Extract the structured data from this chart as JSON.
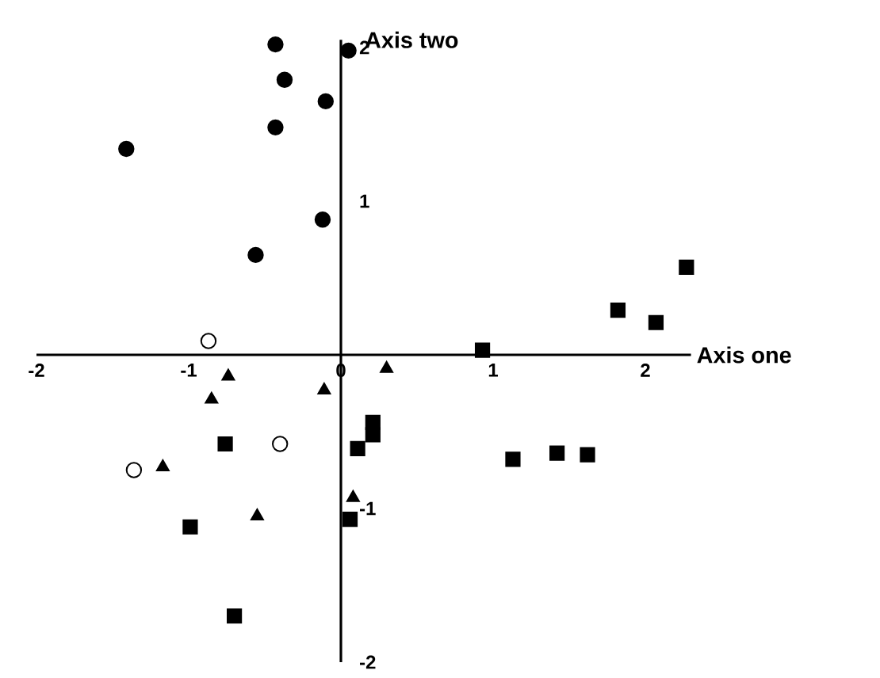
{
  "chart_data": {
    "type": "scatter",
    "xlabel": "Axis one",
    "ylabel": "Axis two",
    "xlim": [
      -2,
      2.3
    ],
    "ylim": [
      -2,
      2.05
    ],
    "xticks": [
      -2,
      -1,
      0,
      1,
      2
    ],
    "yticks": [
      -2,
      -1,
      1,
      2
    ],
    "grid": false,
    "series": [
      {
        "color": "#000000",
        "marker": "circle",
        "x": [
          -0.43,
          -0.37,
          -0.1,
          -0.43,
          -1.41,
          -0.12,
          -0.56,
          0.05
        ],
        "values": [
          2.02,
          1.79,
          1.65,
          1.48,
          1.34,
          0.88,
          0.65,
          1.98
        ]
      },
      {
        "color": "#ffffff",
        "marker": "circle",
        "x": [
          -0.87,
          -0.4,
          -1.36
        ],
        "values": [
          0.09,
          -0.58,
          -0.75
        ]
      },
      {
        "color": "#000000",
        "marker": "triangle",
        "x": [
          -0.74,
          -0.85,
          -0.11,
          0.3,
          -1.17,
          -0.55,
          0.08
        ],
        "values": [
          -0.14,
          -0.29,
          -0.23,
          -0.09,
          -0.73,
          -1.05,
          -0.93
        ]
      },
      {
        "color": "#000000",
        "marker": "square",
        "x": [
          0.93,
          1.82,
          2.07,
          2.27,
          1.13,
          1.42,
          1.62,
          0.21,
          0.21,
          0.11,
          0.06,
          -0.76,
          -0.99,
          -0.7
        ],
        "values": [
          0.03,
          0.29,
          0.21,
          0.57,
          -0.68,
          -0.64,
          -0.65,
          -0.44,
          -0.52,
          -0.61,
          -1.07,
          -0.58,
          -1.12,
          -1.7
        ]
      }
    ]
  }
}
